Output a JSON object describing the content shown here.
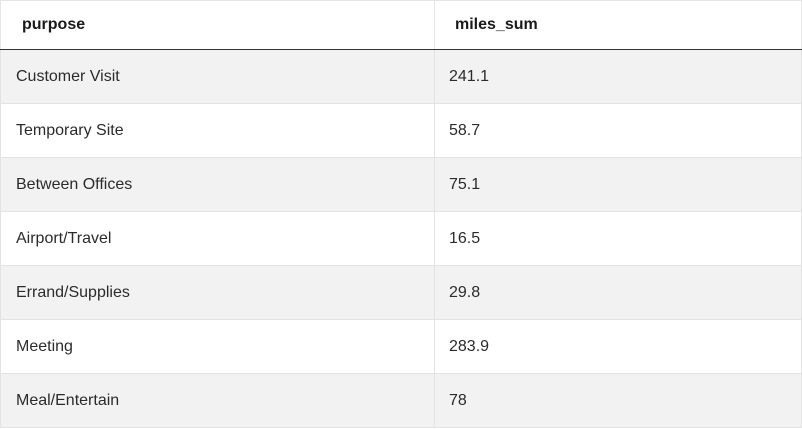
{
  "table": {
    "headers": [
      "purpose",
      "miles_sum"
    ],
    "rows": [
      [
        "Customer Visit",
        "241.1"
      ],
      [
        "Temporary Site",
        "58.7"
      ],
      [
        "Between Offices",
        "75.1"
      ],
      [
        "Airport/Travel",
        "16.5"
      ],
      [
        "Errand/Supplies",
        "29.8"
      ],
      [
        "Meeting",
        "283.9"
      ],
      [
        "Meal/Entertain",
        "78"
      ]
    ]
  }
}
